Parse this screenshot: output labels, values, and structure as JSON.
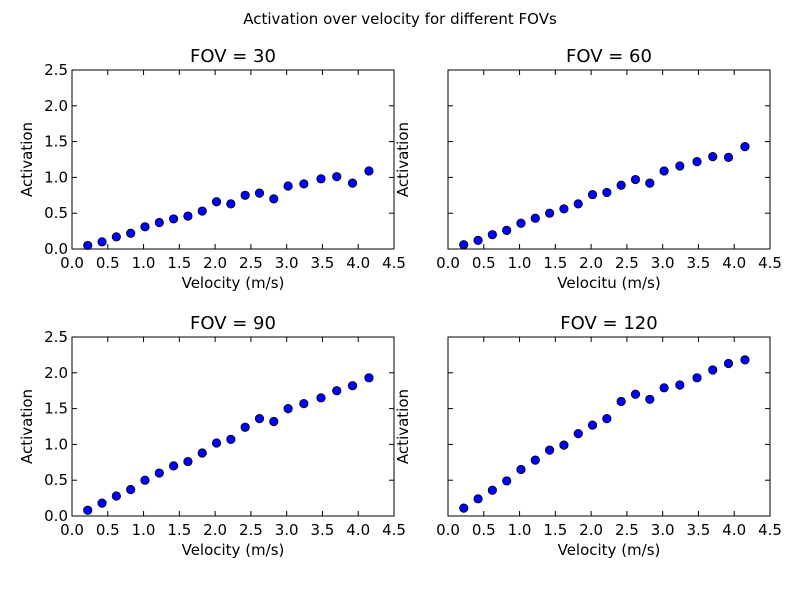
{
  "figure": {
    "suptitle": "Activation over velocity for different FOVs"
  },
  "chart_data": [
    {
      "type": "scatter",
      "title": "FOV = 30",
      "xlabel": "Velocity (m/s)",
      "ylabel": "Activation",
      "xlim": [
        0.0,
        4.5
      ],
      "ylim": [
        0.0,
        2.5
      ],
      "xticks": [
        "0.0",
        "0.5",
        "1.0",
        "1.5",
        "2.0",
        "2.5",
        "3.0",
        "3.5",
        "4.0",
        "4.5"
      ],
      "yticks": [
        "0.0",
        "0.5",
        "1.0",
        "1.5",
        "2.0",
        "2.5"
      ],
      "show_yticklabels": true,
      "marker_color": "#0000ff",
      "x": [
        0.22,
        0.42,
        0.62,
        0.82,
        1.02,
        1.22,
        1.42,
        1.62,
        1.82,
        2.02,
        2.22,
        2.42,
        2.62,
        2.82,
        3.02,
        3.24,
        3.48,
        3.7,
        3.92,
        4.15
      ],
      "y": [
        0.05,
        0.1,
        0.17,
        0.22,
        0.31,
        0.37,
        0.42,
        0.46,
        0.53,
        0.66,
        0.63,
        0.75,
        0.78,
        0.7,
        0.88,
        0.91,
        0.98,
        1.01,
        0.92,
        1.09
      ]
    },
    {
      "type": "scatter",
      "title": "FOV = 60",
      "xlabel": "Velocitu (m/s)",
      "ylabel": "Activation",
      "xlim": [
        0.0,
        4.5
      ],
      "ylim": [
        0.0,
        2.5
      ],
      "xticks": [
        "0.0",
        "0.5",
        "1.0",
        "1.5",
        "2.0",
        "2.5",
        "3.0",
        "3.5",
        "4.0",
        "4.5"
      ],
      "yticks": [
        "0.0",
        "0.5",
        "1.0",
        "1.5",
        "2.0",
        "2.5"
      ],
      "show_yticklabels": false,
      "marker_color": "#0000ff",
      "x": [
        0.22,
        0.42,
        0.62,
        0.82,
        1.02,
        1.22,
        1.42,
        1.62,
        1.82,
        2.02,
        2.22,
        2.42,
        2.62,
        2.82,
        3.02,
        3.24,
        3.48,
        3.7,
        3.92,
        4.15
      ],
      "y": [
        0.06,
        0.12,
        0.2,
        0.26,
        0.36,
        0.43,
        0.5,
        0.56,
        0.63,
        0.76,
        0.79,
        0.89,
        0.97,
        0.92,
        1.09,
        1.16,
        1.22,
        1.29,
        1.28,
        1.43
      ]
    },
    {
      "type": "scatter",
      "title": "FOV = 90",
      "xlabel": "Velocity (m/s)",
      "ylabel": "Activation",
      "xlim": [
        0.0,
        4.5
      ],
      "ylim": [
        0.0,
        2.5
      ],
      "xticks": [
        "0.0",
        "0.5",
        "1.0",
        "1.5",
        "2.0",
        "2.5",
        "3.0",
        "3.5",
        "4.0",
        "4.5"
      ],
      "yticks": [
        "0.0",
        "0.5",
        "1.0",
        "1.5",
        "2.0",
        "2.5"
      ],
      "show_yticklabels": true,
      "marker_color": "#0000ff",
      "x": [
        0.22,
        0.42,
        0.62,
        0.82,
        1.02,
        1.22,
        1.42,
        1.62,
        1.82,
        2.02,
        2.22,
        2.42,
        2.62,
        2.82,
        3.02,
        3.24,
        3.48,
        3.7,
        3.92,
        4.15
      ],
      "y": [
        0.08,
        0.18,
        0.28,
        0.37,
        0.5,
        0.6,
        0.7,
        0.76,
        0.88,
        1.02,
        1.07,
        1.24,
        1.36,
        1.32,
        1.5,
        1.57,
        1.65,
        1.75,
        1.82,
        1.93
      ]
    },
    {
      "type": "scatter",
      "title": "FOV = 120",
      "xlabel": "Velocity (m/s)",
      "ylabel": "Activation",
      "xlim": [
        0.0,
        4.5
      ],
      "ylim": [
        0.0,
        2.5
      ],
      "xticks": [
        "0.0",
        "0.5",
        "1.0",
        "1.5",
        "2.0",
        "2.5",
        "3.0",
        "3.5",
        "4.0",
        "4.5"
      ],
      "yticks": [
        "0.0",
        "0.5",
        "1.0",
        "1.5",
        "2.0",
        "2.5"
      ],
      "show_yticklabels": false,
      "marker_color": "#0000ff",
      "x": [
        0.22,
        0.42,
        0.62,
        0.82,
        1.02,
        1.22,
        1.42,
        1.62,
        1.82,
        2.02,
        2.22,
        2.42,
        2.62,
        2.82,
        3.02,
        3.24,
        3.48,
        3.7,
        3.92,
        4.15
      ],
      "y": [
        0.11,
        0.24,
        0.36,
        0.49,
        0.65,
        0.78,
        0.92,
        0.99,
        1.15,
        1.27,
        1.36,
        1.6,
        1.7,
        1.63,
        1.79,
        1.83,
        1.93,
        2.04,
        2.13,
        2.18
      ]
    }
  ]
}
